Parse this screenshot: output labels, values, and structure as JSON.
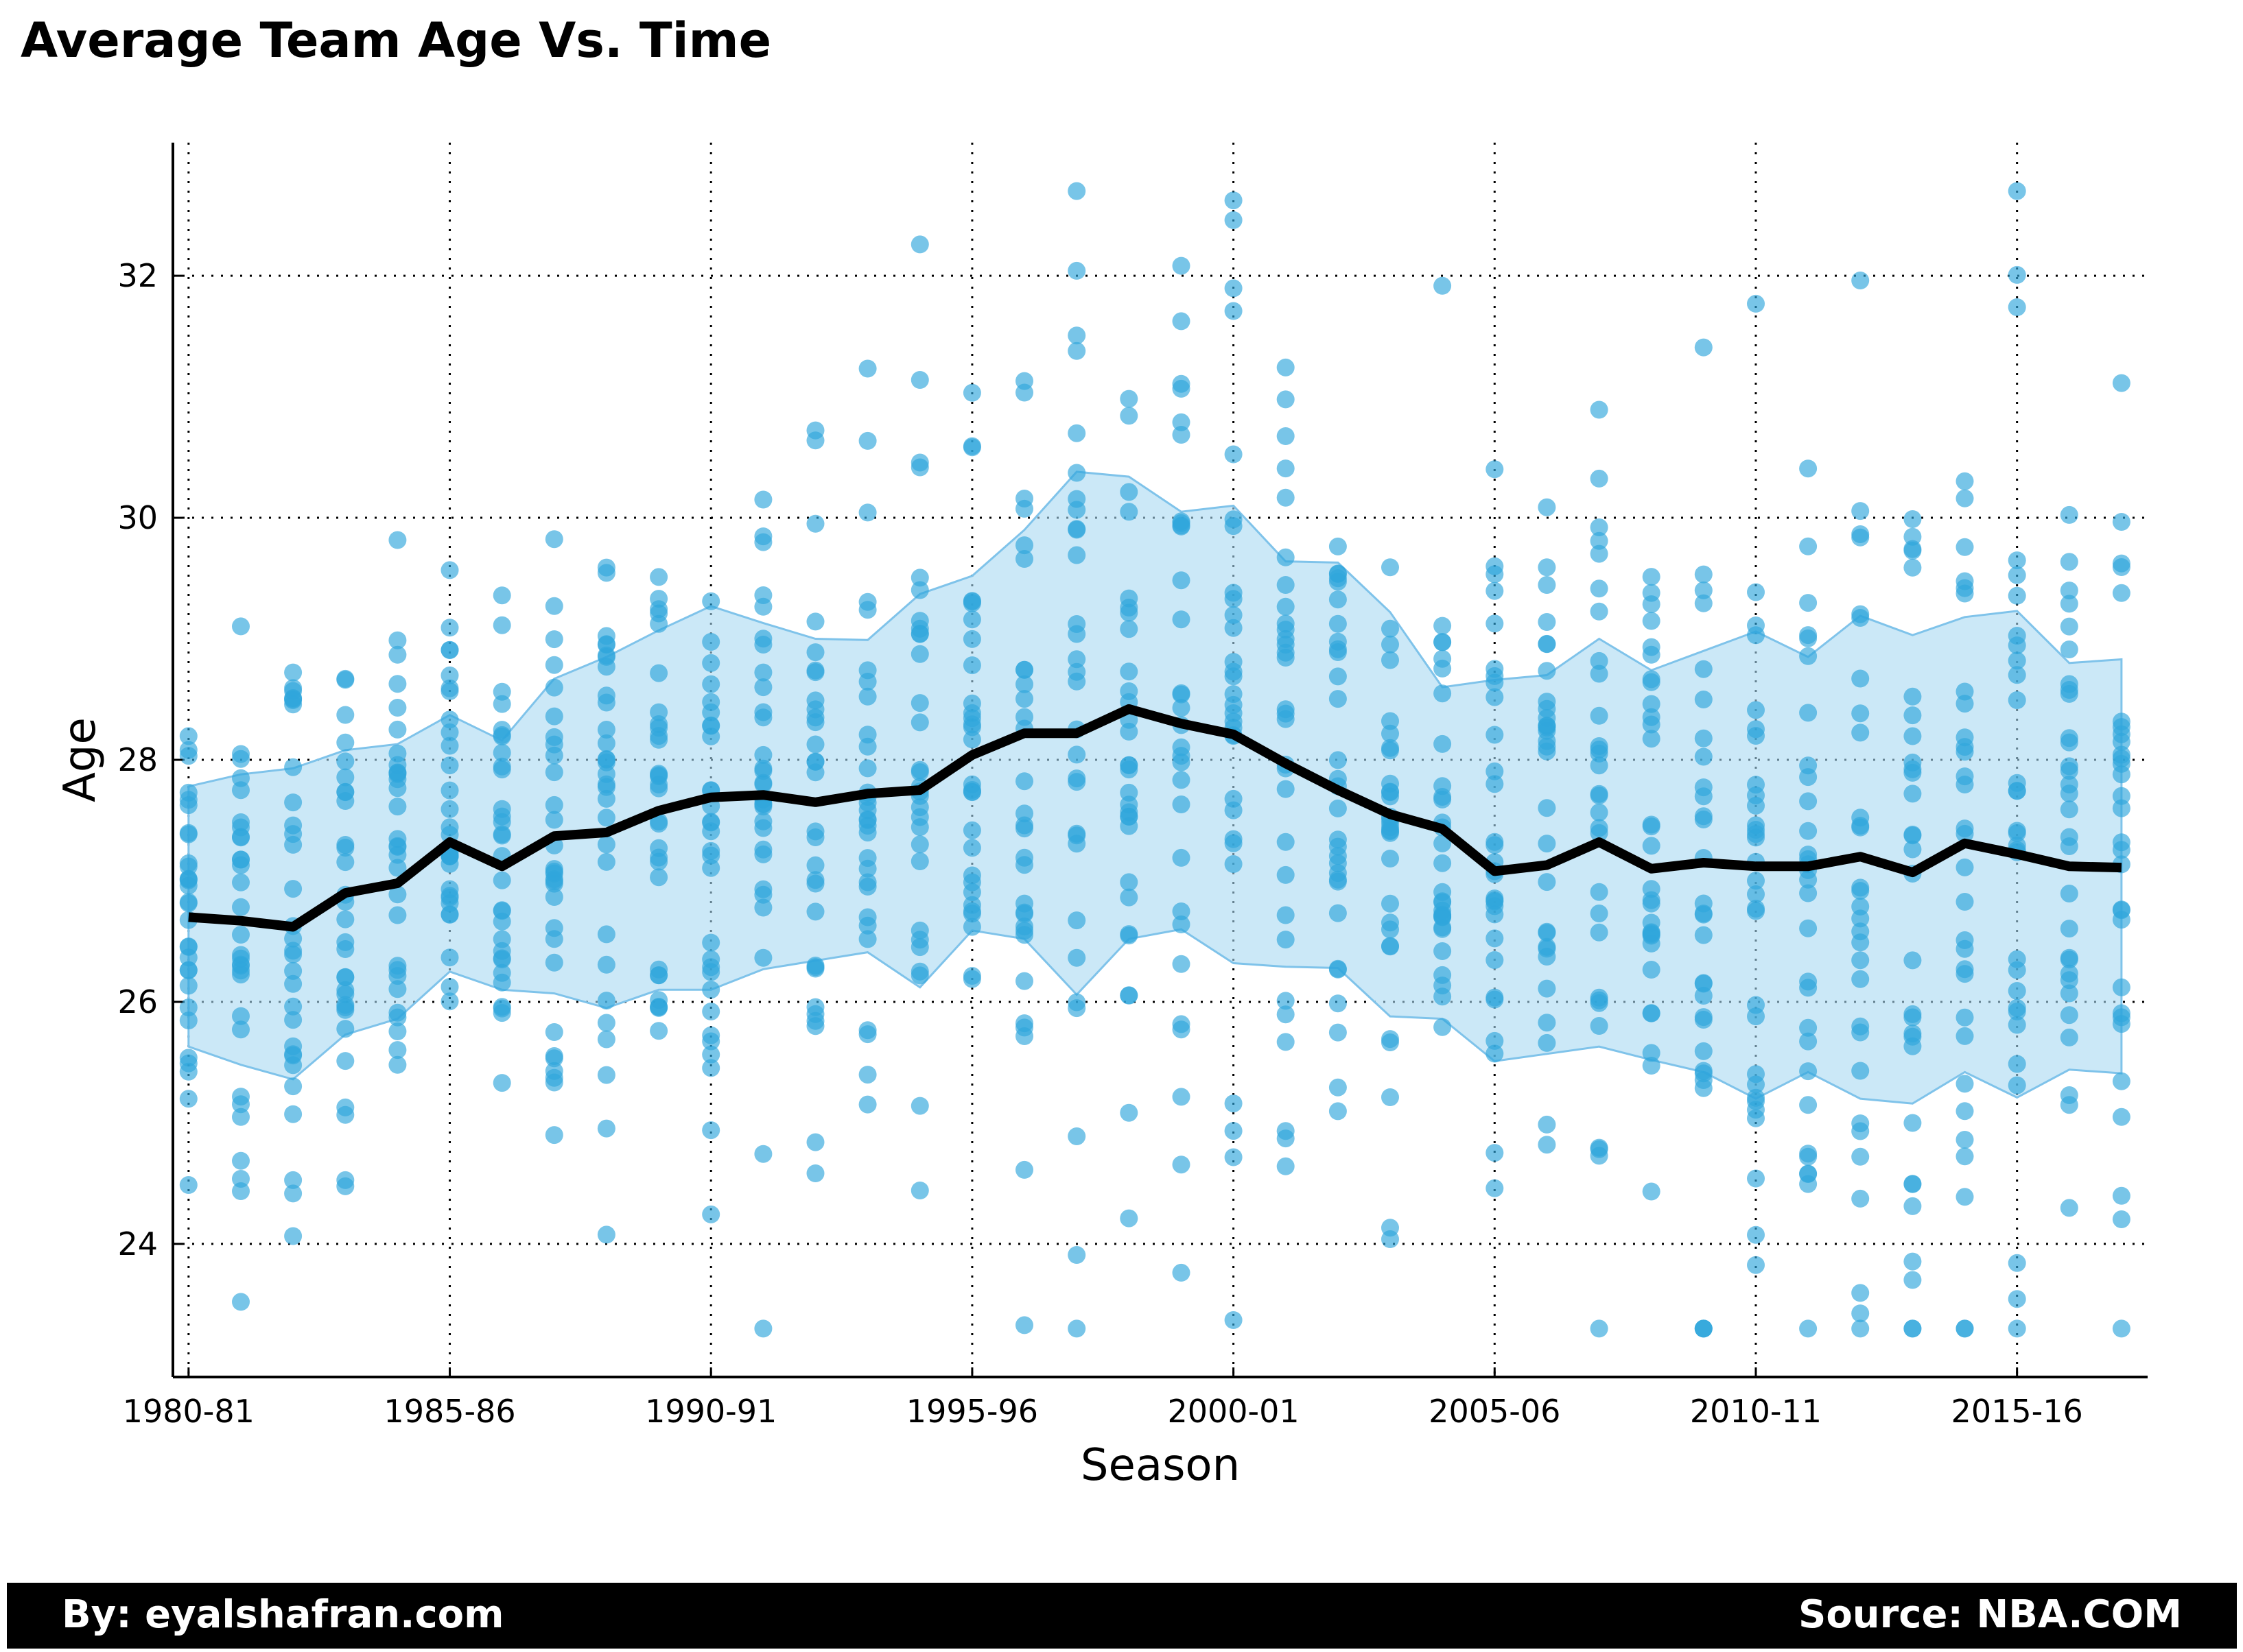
{
  "chart_data": {
    "type": "line",
    "title": "Average Team Age Vs. Time",
    "xlabel": "Season",
    "ylabel": "Age",
    "x_tick_labels": [
      "1980-81",
      "1985-86",
      "1990-91",
      "1995-96",
      "2000-01",
      "2005-06",
      "2010-11",
      "2015-16"
    ],
    "x_tick_positions": [
      0,
      5,
      10,
      15,
      20,
      25,
      30,
      35
    ],
    "y_ticks": [
      24,
      26,
      28,
      30,
      32
    ],
    "xlim": [
      -0.3,
      37.5
    ],
    "ylim": [
      22.9,
      33.1
    ],
    "grid": true,
    "colors": {
      "scatter": "#2fa6dc",
      "band": "#a9d8f2",
      "band_edge": "#7fc3ea",
      "line": "#000000"
    },
    "mean": [
      26.7,
      26.67,
      26.62,
      26.9,
      26.98,
      27.32,
      27.12,
      27.37,
      27.4,
      27.58,
      27.69,
      27.71,
      27.65,
      27.72,
      27.75,
      28.04,
      28.22,
      28.22,
      28.42,
      28.3,
      28.21,
      27.97,
      27.75,
      27.55,
      27.43,
      27.08,
      27.13,
      27.32,
      27.1,
      27.15,
      27.12,
      27.12,
      27.2,
      27.07,
      27.31,
      27.22,
      27.12,
      27.11
    ],
    "band_upper": [
      27.78,
      27.88,
      27.93,
      28.08,
      28.13,
      28.37,
      28.16,
      28.67,
      28.85,
      29.07,
      29.27,
      29.13,
      29.0,
      28.99,
      29.37,
      29.52,
      29.9,
      30.38,
      30.34,
      30.05,
      30.1,
      29.64,
      29.63,
      29.22,
      28.6,
      28.66,
      28.7,
      29.0,
      28.74,
      28.9,
      29.06,
      28.85,
      29.19,
      29.03,
      29.18,
      29.23,
      28.8,
      28.83
    ],
    "band_lower": [
      25.63,
      25.48,
      25.36,
      25.73,
      25.86,
      26.25,
      26.1,
      26.07,
      25.95,
      26.1,
      26.1,
      26.27,
      26.34,
      26.41,
      26.12,
      26.59,
      26.52,
      26.06,
      26.52,
      26.6,
      26.32,
      26.29,
      26.28,
      25.88,
      25.86,
      25.51,
      25.57,
      25.63,
      25.52,
      25.42,
      25.2,
      25.42,
      25.2,
      25.16,
      25.42,
      25.21,
      25.44,
      25.41
    ],
    "scatter_note": "30 teams per season; individual team ages scattered around the season mean"
  },
  "footer": {
    "left": "By: eyalshafran.com",
    "right": "Source: NBA.COM"
  }
}
